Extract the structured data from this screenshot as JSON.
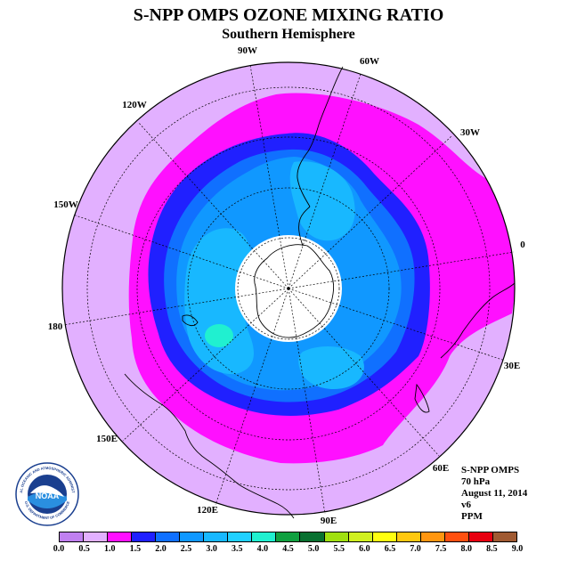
{
  "title": "S-NPP OMPS OZONE MIXING RATIO",
  "subtitle": "Southern Hemisphere",
  "longitude_labels": [
    "90W",
    "60W",
    "30W",
    "0",
    "30E",
    "60E",
    "90E",
    "120E",
    "150E",
    "180",
    "150W",
    "120W"
  ],
  "info": {
    "instrument": "S-NPP OMPS",
    "pressure": "70 hPa",
    "date": "August 11, 2014",
    "version": "v6",
    "units": "PPM"
  },
  "logo": {
    "text": "NOAA",
    "ring_top": "NATIONAL OCEANIC AND ATMOSPHERIC ADMINISTRATION",
    "ring_bottom": "U.S. DEPARTMENT OF COMMERCE"
  },
  "colorbar": {
    "ticks": [
      "0.0",
      "0.5",
      "1.0",
      "1.5",
      "2.0",
      "2.5",
      "3.0",
      "3.5",
      "4.0",
      "4.5",
      "5.0",
      "5.5",
      "6.0",
      "6.5",
      "7.0",
      "7.5",
      "8.0",
      "8.5",
      "9.0"
    ],
    "colors": [
      "#c080f0",
      "#e2b0ff",
      "#ff10ff",
      "#2020ff",
      "#1070ff",
      "#1098ff",
      "#18b8ff",
      "#20d0ff",
      "#20f0d0",
      "#10a040",
      "#087030",
      "#a0e010",
      "#d0f020",
      "#ffff10",
      "#ffc810",
      "#ff9610",
      "#ff5010",
      "#e80010",
      "#a05a32"
    ]
  },
  "map_fields": {
    "background_color": "#e2b0ff",
    "band_colors": [
      "#ff10ff",
      "#2020ff",
      "#1070ff",
      "#1098ff",
      "#18b8ff",
      "#20f0d0"
    ],
    "pole_hole_color": "#ffffff"
  }
}
